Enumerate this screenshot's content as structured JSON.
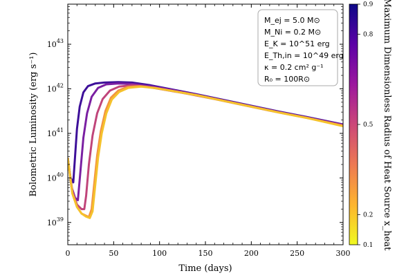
{
  "chart_data": {
    "type": "line",
    "xlabel": "Time (days)",
    "ylabel": "Bolometric Luminosity (erg s⁻¹)",
    "xlim": [
      0,
      300
    ],
    "ylim_log10": [
      38.5,
      43.9
    ],
    "y_scale": "log",
    "x_ticks": [
      0,
      50,
      100,
      150,
      200,
      250,
      300
    ],
    "y_tick_exponents": [
      39,
      40,
      41,
      42,
      43
    ],
    "grid": false,
    "legend_placement": "top-right",
    "params": [
      {
        "label": "M_ej = 5.0 M⊙"
      },
      {
        "label": "M_Ni = 0.2 M⊙"
      },
      {
        "label": "E_K = 10^51 erg"
      },
      {
        "label": "E_Th,in = 10^49 erg"
      },
      {
        "label": "κ = 0.2 cm² g⁻¹"
      },
      {
        "label": "R₀ = 100R⊙"
      }
    ],
    "colorbar": {
      "label": "Maximum Dimensionless Radius of Heat Source x_heat",
      "range": [
        0.1,
        0.9
      ],
      "ticks": [
        0.1,
        0.2,
        0.5,
        0.8,
        0.9
      ],
      "colors": [
        "#f0f921",
        "#fdb42f",
        "#ed7953",
        "#cc4778",
        "#9c179e",
        "#5c01a6",
        "#0d0887"
      ]
    },
    "series": [
      {
        "x_heat": 0.9,
        "color": "#3d0f99",
        "points": [
          [
            0,
            40.45
          ],
          [
            3,
            40.0
          ],
          [
            6,
            39.9
          ],
          [
            8,
            40.5
          ],
          [
            10,
            41.1
          ],
          [
            13,
            41.6
          ],
          [
            17,
            41.92
          ],
          [
            22,
            42.06
          ],
          [
            30,
            42.12
          ],
          [
            40,
            42.14
          ],
          [
            55,
            42.15
          ],
          [
            70,
            42.14
          ],
          [
            90,
            42.08
          ],
          [
            110,
            42.0
          ],
          [
            140,
            41.88
          ],
          [
            170,
            41.75
          ],
          [
            200,
            41.62
          ],
          [
            230,
            41.49
          ],
          [
            260,
            41.37
          ],
          [
            300,
            41.2
          ]
        ]
      },
      {
        "x_heat": 0.8,
        "color": "#7a1fa2",
        "points": [
          [
            0,
            40.45
          ],
          [
            4,
            39.8
          ],
          [
            8,
            39.55
          ],
          [
            11,
            39.5
          ],
          [
            14,
            40.2
          ],
          [
            17,
            40.9
          ],
          [
            21,
            41.45
          ],
          [
            26,
            41.82
          ],
          [
            33,
            42.02
          ],
          [
            42,
            42.1
          ],
          [
            55,
            42.12
          ],
          [
            70,
            42.11
          ],
          [
            90,
            42.06
          ],
          [
            110,
            41.99
          ],
          [
            140,
            41.87
          ],
          [
            170,
            41.74
          ],
          [
            200,
            41.61
          ],
          [
            230,
            41.48
          ],
          [
            260,
            41.36
          ],
          [
            300,
            41.19
          ]
        ]
      },
      {
        "x_heat": 0.5,
        "color": "#c0457a",
        "points": [
          [
            0,
            40.45
          ],
          [
            5,
            39.7
          ],
          [
            10,
            39.4
          ],
          [
            15,
            39.3
          ],
          [
            18,
            39.3
          ],
          [
            20,
            39.6
          ],
          [
            23,
            40.3
          ],
          [
            27,
            40.95
          ],
          [
            32,
            41.45
          ],
          [
            38,
            41.77
          ],
          [
            46,
            41.96
          ],
          [
            56,
            42.05
          ],
          [
            70,
            42.08
          ],
          [
            85,
            42.05
          ],
          [
            105,
            41.98
          ],
          [
            130,
            41.89
          ],
          [
            160,
            41.77
          ],
          [
            190,
            41.64
          ],
          [
            220,
            41.51
          ],
          [
            255,
            41.37
          ],
          [
            300,
            41.18
          ]
        ]
      },
      {
        "x_heat": 0.2,
        "color": "#f29440",
        "points": [
          [
            0,
            40.45
          ],
          [
            5,
            39.65
          ],
          [
            10,
            39.35
          ],
          [
            15,
            39.2
          ],
          [
            20,
            39.15
          ],
          [
            23,
            39.12
          ],
          [
            26,
            39.3
          ],
          [
            29,
            39.9
          ],
          [
            32,
            40.5
          ],
          [
            36,
            41.05
          ],
          [
            41,
            41.5
          ],
          [
            47,
            41.8
          ],
          [
            55,
            41.96
          ],
          [
            65,
            42.04
          ],
          [
            78,
            42.06
          ],
          [
            95,
            42.02
          ],
          [
            115,
            41.95
          ],
          [
            140,
            41.86
          ],
          [
            170,
            41.73
          ],
          [
            200,
            41.6
          ],
          [
            230,
            41.47
          ],
          [
            260,
            41.35
          ],
          [
            300,
            41.17
          ]
        ]
      },
      {
        "x_heat": 0.1,
        "color": "#f5c22c",
        "points": [
          [
            0,
            40.45
          ],
          [
            5,
            39.65
          ],
          [
            10,
            39.35
          ],
          [
            15,
            39.2
          ],
          [
            20,
            39.13
          ],
          [
            24,
            39.1
          ],
          [
            27,
            39.25
          ],
          [
            30,
            39.85
          ],
          [
            33,
            40.45
          ],
          [
            37,
            41.0
          ],
          [
            42,
            41.45
          ],
          [
            48,
            41.76
          ],
          [
            56,
            41.93
          ],
          [
            66,
            42.02
          ],
          [
            80,
            42.05
          ],
          [
            97,
            42.01
          ],
          [
            117,
            41.94
          ],
          [
            142,
            41.85
          ],
          [
            172,
            41.72
          ],
          [
            202,
            41.59
          ],
          [
            232,
            41.46
          ],
          [
            262,
            41.34
          ],
          [
            300,
            41.16
          ]
        ]
      }
    ]
  }
}
